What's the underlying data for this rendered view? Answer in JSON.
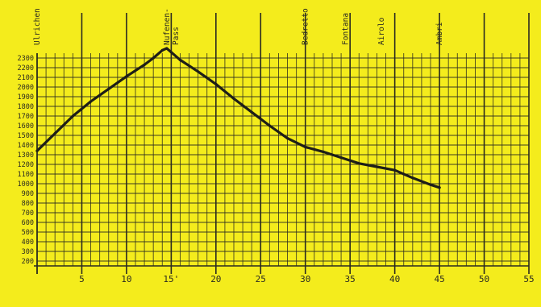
{
  "chart_data": {
    "type": "line",
    "title": "",
    "xlabel": "",
    "ylabel": "",
    "xlim": [
      0,
      55
    ],
    "ylim": [
      150,
      2350
    ],
    "grid": true,
    "x_ticks": [
      5,
      10,
      15,
      20,
      25,
      30,
      35,
      40,
      45,
      50,
      55
    ],
    "x_tick_labels": [
      "5",
      "10",
      "15'",
      "20",
      "25",
      "30",
      "35",
      "40",
      "45",
      "50",
      "55"
    ],
    "y_ticks": [
      200,
      300,
      400,
      500,
      600,
      700,
      800,
      900,
      1000,
      1100,
      1200,
      1300,
      1400,
      1500,
      1600,
      1700,
      1800,
      1900,
      2000,
      2100,
      2200,
      2300
    ],
    "y_tick_labels": [
      "200",
      "300",
      "400",
      "500",
      "600",
      "700",
      "800",
      "900",
      "1000",
      "1100",
      "1200",
      "1300",
      "1400",
      "1500",
      "1600",
      "1700",
      "1800",
      "1900",
      "2000",
      "2100",
      "2200",
      "2300"
    ],
    "places": [
      {
        "label": "Ulrichen",
        "x": 0
      },
      {
        "label": "Nufenen-\nPass",
        "x": 14.5
      },
      {
        "label": "Bedretto",
        "x": 30
      },
      {
        "label": "Fontana",
        "x": 34.5
      },
      {
        "label": "Airolo",
        "x": 38.5
      },
      {
        "label": "Ambri",
        "x": 45
      }
    ],
    "series": [
      {
        "x": [
          0,
          2,
          4,
          6,
          8,
          10,
          12,
          13,
          14,
          14.5,
          15,
          16,
          18,
          20,
          22,
          24,
          26,
          28,
          30,
          32,
          34,
          36,
          38,
          40,
          42,
          44,
          45
        ],
        "y": [
          1340,
          1520,
          1700,
          1850,
          1980,
          2110,
          2230,
          2300,
          2380,
          2400,
          2360,
          2280,
          2160,
          2030,
          1880,
          1740,
          1600,
          1470,
          1380,
          1330,
          1270,
          1210,
          1175,
          1140,
          1060,
          990,
          960
        ]
      }
    ],
    "colors": {
      "background": "#f4ec1c",
      "grid": "#2a2a20",
      "line": "#1e1e18"
    }
  }
}
